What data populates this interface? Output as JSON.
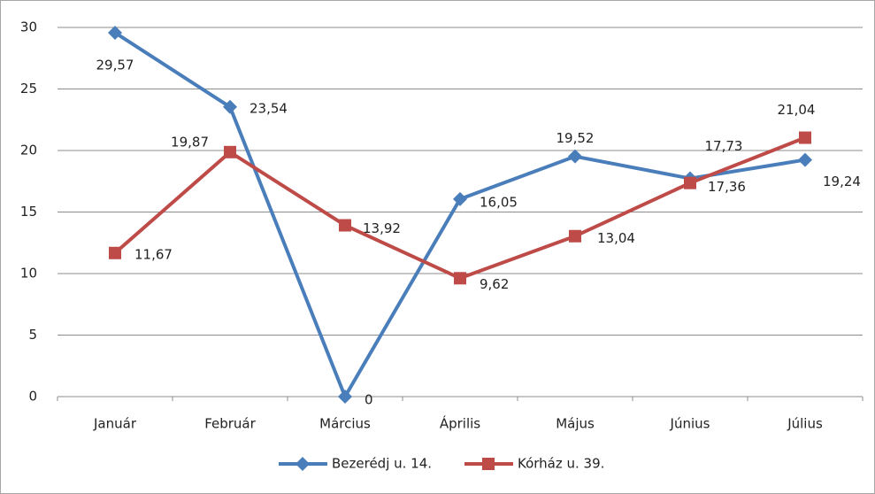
{
  "chart_data": {
    "type": "line",
    "categories": [
      "Január",
      "Február",
      "Március",
      "Április",
      "Május",
      "Június",
      "Július"
    ],
    "series": [
      {
        "name": "Bezerédj u. 14.",
        "color": "#4a7ebb",
        "marker": "diamond",
        "values": [
          29.57,
          23.54,
          0,
          16.05,
          19.52,
          17.73,
          19.24
        ],
        "value_labels": [
          "29,57",
          "23,54",
          "0",
          "16,05",
          "19,52",
          "17,73",
          "19,24"
        ]
      },
      {
        "name": "Kórház u. 39.",
        "color": "#be4b48",
        "marker": "square",
        "values": [
          11.67,
          19.87,
          13.92,
          9.62,
          13.04,
          17.36,
          21.04
        ],
        "value_labels": [
          "11,67",
          "19,87",
          "13,92",
          "9,62",
          "13,04",
          "17,36",
          "21,04"
        ]
      }
    ],
    "ylim": [
      0,
      30
    ],
    "yticks": [
      0,
      5,
      10,
      15,
      20,
      25,
      30
    ],
    "grid": true,
    "legend": "bottom"
  }
}
